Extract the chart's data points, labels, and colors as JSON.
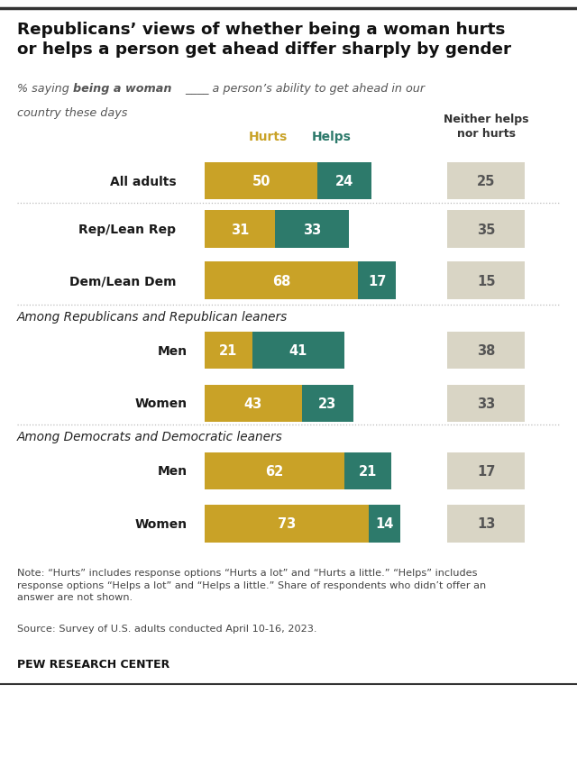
{
  "title": "Republicans’ views of whether being a woman hurts\nor helps a person get ahead differ sharply by gender",
  "color_hurts": "#C9A227",
  "color_helps": "#2D7A6B",
  "color_neither": "#D9D5C5",
  "all_rows": [
    {
      "label": "All adults",
      "hurts": 50,
      "helps": 24,
      "neither": 25,
      "indent": false
    },
    {
      "label": "Rep/Lean Rep",
      "hurts": 31,
      "helps": 33,
      "neither": 35,
      "indent": false
    },
    {
      "label": "Dem/Lean Dem",
      "hurts": 68,
      "helps": 17,
      "neither": 15,
      "indent": false
    }
  ],
  "section1_title": "Among Republicans and Republican leaners",
  "rows_rep": [
    {
      "label": "Men",
      "hurts": 21,
      "helps": 41,
      "neither": 38,
      "indent": true
    },
    {
      "label": "Women",
      "hurts": 43,
      "helps": 23,
      "neither": 33,
      "indent": true
    }
  ],
  "section2_title": "Among Democrats and Democratic leaners",
  "rows_dem": [
    {
      "label": "Men",
      "hurts": 62,
      "helps": 21,
      "neither": 17,
      "indent": true
    },
    {
      "label": "Women",
      "hurts": 73,
      "helps": 14,
      "neither": 13,
      "indent": true
    }
  ],
  "note": "Note: “Hurts” includes response options “Hurts a lot” and “Hurts a little.” “Helps” includes\nresponse options “Helps a lot” and “Helps a little.” Share of respondents who didn’t offer an\nanswer are not shown.",
  "source": "Source: Survey of U.S. adults conducted April 10-16, 2023.",
  "branding": "PEW RESEARCH CENTER"
}
